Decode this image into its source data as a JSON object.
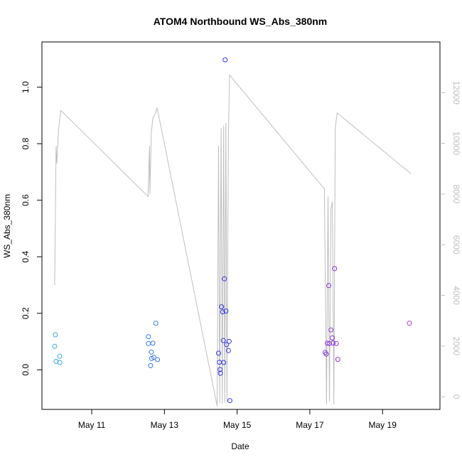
{
  "chart_data": {
    "type": "scatter",
    "title": "ATOM4 Northbound WS_Abs_380nm",
    "xlabel": "Date",
    "ylabel": "WS_Abs_380nm",
    "x_range_days": [
      9.63,
      20.58
    ],
    "ylim": [
      -0.14,
      1.16
    ],
    "y2lim": [
      -500,
      14000
    ],
    "x_ticks": [
      {
        "day": 11,
        "label": "May 11"
      },
      {
        "day": 13,
        "label": "May 13"
      },
      {
        "day": 15,
        "label": "May 15"
      },
      {
        "day": 17,
        "label": "May 17"
      },
      {
        "day": 19,
        "label": "May 19"
      }
    ],
    "y_ticks": [
      {
        "value": 0.0,
        "label": "0.0"
      },
      {
        "value": 0.2,
        "label": "0.2"
      },
      {
        "value": 0.4,
        "label": "0.4"
      },
      {
        "value": 0.6,
        "label": "0.6"
      },
      {
        "value": 0.8,
        "label": "0.8"
      },
      {
        "value": 1.0,
        "label": "1.0"
      }
    ],
    "y2_ticks": [
      {
        "value": 0,
        "label": "0"
      },
      {
        "value": 2000,
        "label": "2000"
      },
      {
        "value": 4000,
        "label": "4000"
      },
      {
        "value": 6000,
        "label": "6000"
      },
      {
        "value": 8000,
        "label": "8000"
      },
      {
        "value": 10000,
        "label": "10000"
      },
      {
        "value": 12000,
        "label": "12000"
      }
    ],
    "points": [
      {
        "day": 9.98,
        "y": 0.083,
        "color": "#33aadd"
      },
      {
        "day": 10.0,
        "y": 0.124,
        "color": "#33aadd"
      },
      {
        "day": 10.02,
        "y": 0.03,
        "color": "#33aadd"
      },
      {
        "day": 10.12,
        "y": 0.048,
        "color": "#33aadd"
      },
      {
        "day": 10.12,
        "y": 0.026,
        "color": "#33aadd"
      },
      {
        "day": 12.56,
        "y": 0.117,
        "color": "#3377ee"
      },
      {
        "day": 12.56,
        "y": 0.093,
        "color": "#3377ee"
      },
      {
        "day": 12.62,
        "y": 0.015,
        "color": "#3377ee"
      },
      {
        "day": 12.64,
        "y": 0.063,
        "color": "#3377ee"
      },
      {
        "day": 12.65,
        "y": 0.04,
        "color": "#3377ee"
      },
      {
        "day": 12.68,
        "y": 0.094,
        "color": "#3377ee"
      },
      {
        "day": 12.71,
        "y": 0.044,
        "color": "#3377ee"
      },
      {
        "day": 12.76,
        "y": 0.165,
        "color": "#3377ee"
      },
      {
        "day": 12.81,
        "y": 0.036,
        "color": "#3377ee"
      },
      {
        "day": 14.49,
        "y": 0.059,
        "color": "#3333ee"
      },
      {
        "day": 14.51,
        "y": 0.027,
        "color": "#3333ee"
      },
      {
        "day": 14.53,
        "y": 0.001,
        "color": "#3333ee"
      },
      {
        "day": 14.54,
        "y": -0.012,
        "color": "#3333ee"
      },
      {
        "day": 14.57,
        "y": 0.223,
        "color": "#3333ee"
      },
      {
        "day": 14.6,
        "y": 0.205,
        "color": "#3333ee"
      },
      {
        "day": 14.62,
        "y": 0.104,
        "color": "#3333ee"
      },
      {
        "day": 14.63,
        "y": 0.026,
        "color": "#3333ee"
      },
      {
        "day": 14.65,
        "y": 0.322,
        "color": "#3333ee"
      },
      {
        "day": 14.67,
        "y": 1.097,
        "color": "#3333ee"
      },
      {
        "day": 14.69,
        "y": 0.208,
        "color": "#3333ee"
      },
      {
        "day": 14.71,
        "y": 0.089,
        "color": "#3333ee"
      },
      {
        "day": 14.76,
        "y": 0.068,
        "color": "#3333ee"
      },
      {
        "day": 14.78,
        "y": 0.101,
        "color": "#3333ee"
      },
      {
        "day": 14.8,
        "y": -0.109,
        "color": "#3333ee"
      },
      {
        "day": 17.42,
        "y": 0.062,
        "color": "#8833dd"
      },
      {
        "day": 17.45,
        "y": 0.056,
        "color": "#8833dd"
      },
      {
        "day": 17.48,
        "y": 0.094,
        "color": "#8833dd"
      },
      {
        "day": 17.52,
        "y": 0.298,
        "color": "#8833dd"
      },
      {
        "day": 17.54,
        "y": 0.093,
        "color": "#8833dd"
      },
      {
        "day": 17.58,
        "y": 0.141,
        "color": "#8833dd"
      },
      {
        "day": 17.62,
        "y": 0.113,
        "color": "#8833dd"
      },
      {
        "day": 17.64,
        "y": 0.095,
        "color": "#8833dd"
      },
      {
        "day": 17.68,
        "y": 0.358,
        "color": "#8833dd"
      },
      {
        "day": 17.73,
        "y": 0.093,
        "color": "#8833dd"
      },
      {
        "day": 17.77,
        "y": 0.037,
        "color": "#8833dd"
      },
      {
        "day": 19.74,
        "y": 0.165,
        "color": "#bb33cc"
      }
    ],
    "line_series": [
      [
        9.98,
        4400
      ],
      [
        10.02,
        9900
      ],
      [
        10.04,
        9200
      ],
      [
        10.09,
        10600
      ],
      [
        10.15,
        11300
      ],
      [
        12.55,
        7900
      ],
      [
        12.59,
        9900
      ],
      [
        12.6,
        8000
      ],
      [
        12.64,
        10400
      ],
      [
        12.68,
        11000
      ],
      [
        12.76,
        11200
      ],
      [
        12.8,
        11400
      ],
      [
        14.45,
        -370
      ],
      [
        14.49,
        9900
      ],
      [
        14.52,
        -240
      ],
      [
        14.56,
        10600
      ],
      [
        14.59,
        -270
      ],
      [
        14.63,
        10700
      ],
      [
        14.66,
        -240
      ],
      [
        14.69,
        10800
      ],
      [
        14.72,
        -200
      ],
      [
        14.76,
        10300
      ],
      [
        14.79,
        12700
      ],
      [
        17.4,
        8200
      ],
      [
        17.46,
        -300
      ],
      [
        17.5,
        7900
      ],
      [
        17.54,
        -200
      ],
      [
        17.58,
        7400
      ],
      [
        17.62,
        7700
      ],
      [
        17.66,
        -300
      ],
      [
        17.7,
        10600
      ],
      [
        17.75,
        11200
      ],
      [
        19.78,
        8800
      ]
    ],
    "line_color": "#bebebe",
    "grid": false,
    "legend": "none"
  }
}
